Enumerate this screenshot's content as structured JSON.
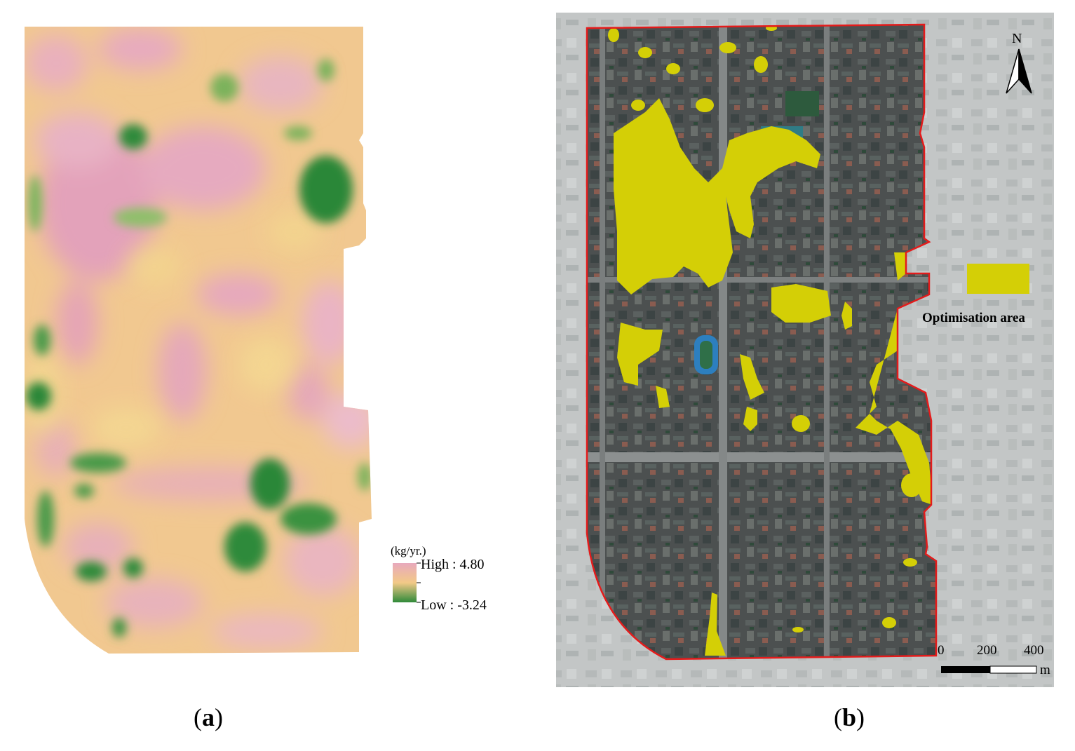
{
  "panel_a": {
    "caption_letter": "a",
    "legend": {
      "unit": "(kg/yr.)",
      "high_label": "High : 4.80",
      "low_label": "Low : -3.24",
      "high_value": 4.8,
      "low_value": -3.24,
      "colors": {
        "high": "#e8a9bd",
        "mid": "#f2c987",
        "low": "#2f8a3a"
      }
    }
  },
  "panel_b": {
    "caption_letter": "b",
    "legend": {
      "label": "Optimisation area",
      "color": "#d4cf06"
    },
    "north_arrow": {
      "letter": "N",
      "icon": "north-arrow-icon"
    },
    "scale_bar": {
      "ticks": [
        "0",
        "200",
        "400"
      ],
      "unit": "m"
    },
    "boundary_color": "#e41b1b"
  }
}
